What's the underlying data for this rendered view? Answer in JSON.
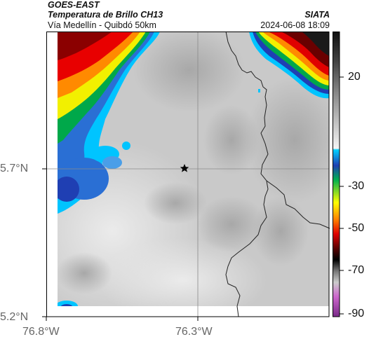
{
  "header": {
    "satellite": "GOES-EAST",
    "product": "Temperatura de Brillo CH13",
    "region": "Vía Medellín - Quibdó 50km",
    "org": "SIATA",
    "datetime": "2024-06-08 18:09"
  },
  "axes": {
    "lat_labels": [
      "5.7°N",
      "5.2°N"
    ],
    "lon_labels": [
      "76.8°W",
      "76.3°W"
    ]
  },
  "colorbar": {
    "tick_labels": [
      "20",
      "-30",
      "-50",
      "-70",
      "-90"
    ],
    "colors": [
      "#1a1a1a",
      "#555555",
      "#888888",
      "#bbbbbb",
      "#ffffff",
      "#00bfff",
      "#1f3fb3",
      "#00b050",
      "#ffff00",
      "#ff8000",
      "#e00000",
      "#5a0000",
      "#000000",
      "#9933aa"
    ]
  },
  "map": {
    "marker": "star-icon"
  }
}
